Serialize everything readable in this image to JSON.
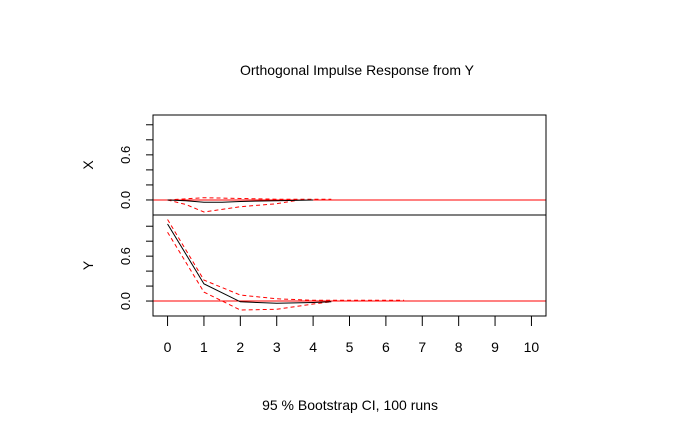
{
  "chart_data": {
    "type": "line",
    "title": "Orthogonal Impulse Response from Y",
    "xlabel": "95 % Bootstrap CI,  100 runs",
    "xlim": [
      -0.4,
      10.4
    ],
    "x_ticks": [
      0,
      1,
      2,
      3,
      4,
      5,
      6,
      7,
      8,
      9,
      10
    ],
    "colors": {
      "response": "#000000",
      "ci": "#ff0000",
      "zero": "#ff0000"
    },
    "panels": [
      {
        "ylabel": "X",
        "ylim": [
          -0.2,
          1.13
        ],
        "y_ticks": [
          0,
          0.2,
          0.4,
          0.6,
          0.8,
          1.0
        ],
        "y_tick_labels": [
          "0.0",
          "0.6"
        ],
        "response": {
          "x": [
            0,
            0.5,
            1,
            1.5,
            2,
            3,
            4
          ],
          "y": [
            0,
            -0.01,
            -0.03,
            -0.03,
            -0.02,
            -0.01,
            0
          ]
        },
        "upper": {
          "x": [
            0,
            1,
            2,
            3,
            4,
            4.5
          ],
          "y": [
            0,
            0.03,
            0.02,
            0.01,
            0.01,
            0.01
          ]
        },
        "lower": {
          "x": [
            0,
            0.5,
            1,
            2,
            3,
            3.5
          ],
          "y": [
            0,
            -0.06,
            -0.16,
            -0.09,
            -0.05,
            -0.01
          ]
        }
      },
      {
        "ylabel": "Y",
        "ylim": [
          -0.2,
          1.15
        ],
        "y_ticks": [
          0,
          0.2,
          0.4,
          0.6,
          0.8,
          1.0
        ],
        "y_tick_labels": [
          "0.0",
          "0.6"
        ],
        "response": {
          "x": [
            0,
            1,
            2,
            3,
            4,
            4.5
          ],
          "y": [
            1.03,
            0.23,
            -0.01,
            -0.03,
            -0.02,
            -0.01
          ]
        },
        "upper": {
          "x": [
            0,
            1,
            2,
            3,
            4,
            5,
            6,
            6.5
          ],
          "y": [
            1.09,
            0.28,
            0.08,
            0.03,
            0.01,
            0.01,
            0.01,
            0.01
          ]
        },
        "lower": {
          "x": [
            0,
            1,
            2,
            3,
            4,
            4.5
          ],
          "y": [
            0.92,
            0.12,
            -0.12,
            -0.11,
            -0.04,
            -0.01
          ]
        }
      }
    ]
  }
}
